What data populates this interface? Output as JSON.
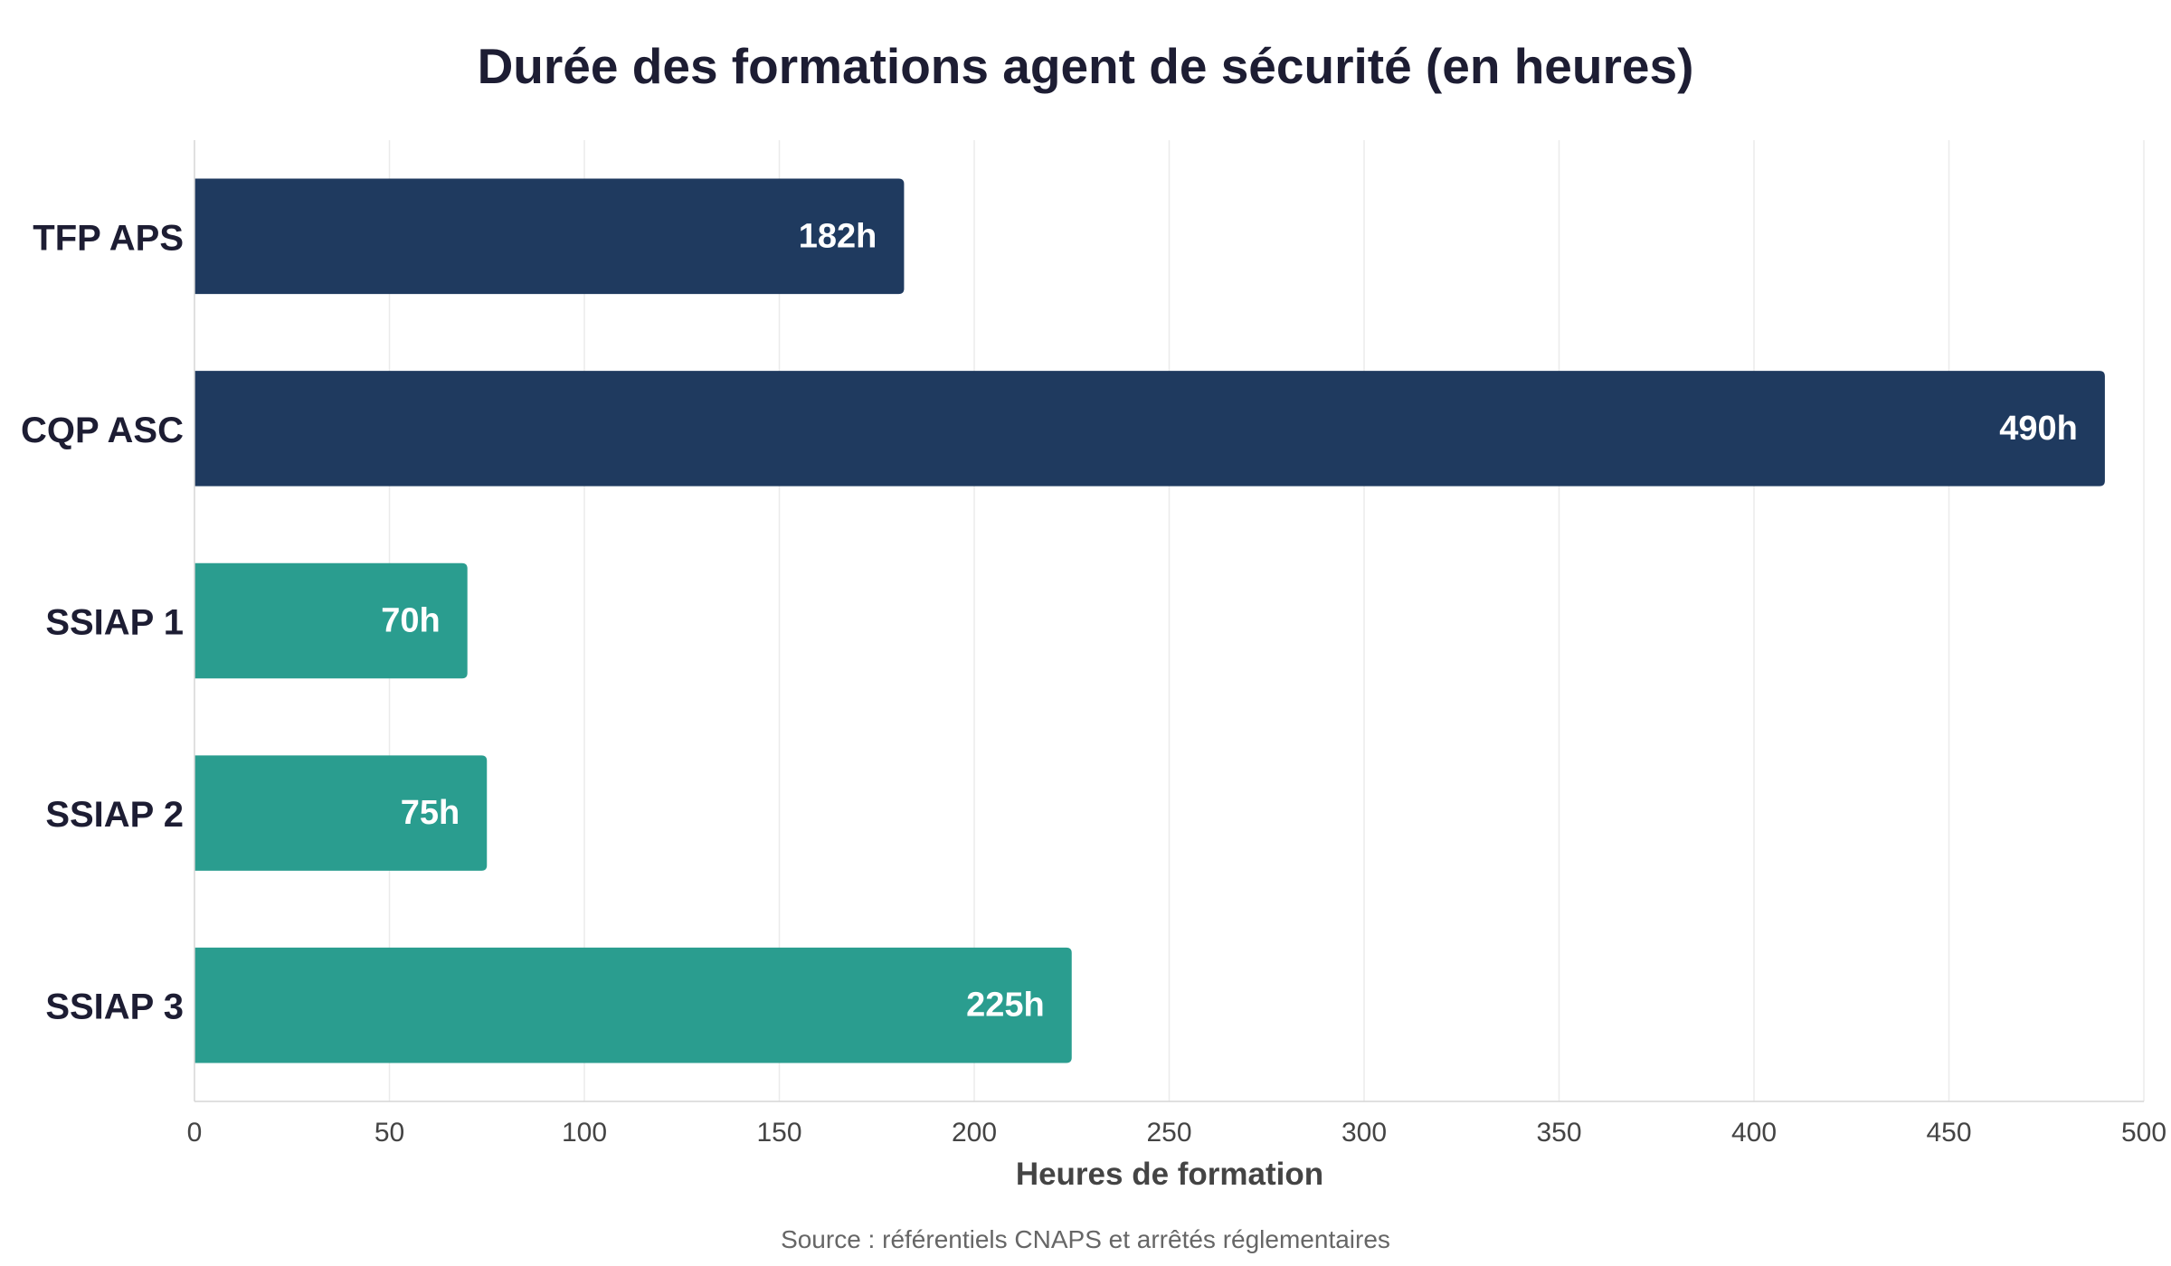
{
  "chart_data": {
    "type": "bar",
    "orientation": "horizontal",
    "title": "Durée des formations agent de sécurité (en heures)",
    "categories": [
      "TFP APS",
      "CQP ASC",
      "SSIAP 1",
      "SSIAP 2",
      "SSIAP 3"
    ],
    "values": [
      182,
      490,
      70,
      75,
      225
    ],
    "value_labels": [
      "182h",
      "490h",
      "70h",
      "75h",
      "225h"
    ],
    "bar_colors": [
      "#1f3a5f",
      "#1f3a5f",
      "#2a9d8f",
      "#2a9d8f",
      "#2a9d8f"
    ],
    "xlabel": "Heures de formation",
    "ylabel": "",
    "xlim": [
      0,
      500
    ],
    "xticks": [
      0,
      50,
      100,
      150,
      200,
      250,
      300,
      350,
      400,
      450,
      500
    ],
    "grid": "vertical",
    "source": "Source : référentiels CNAPS et arrêtés réglementaires"
  }
}
